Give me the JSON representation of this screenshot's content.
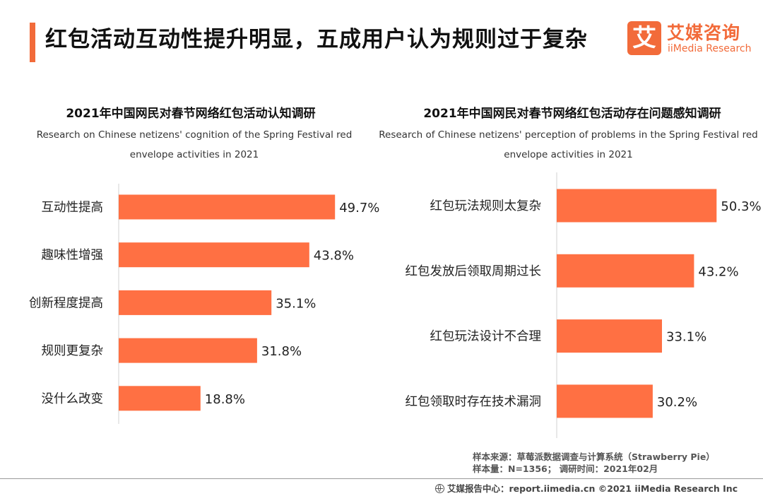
{
  "header": {
    "title": "红包活动互动性提升明显，五成用户认为规则过于复杂",
    "accent_color": "#f26b3a"
  },
  "logo": {
    "mark": "艾",
    "cn": "艾媒咨询",
    "en": "iiMedia Research"
  },
  "chart_data": [
    {
      "type": "bar",
      "orientation": "horizontal",
      "title": "2021年中国网民对春节网络红包活动认知调研",
      "subtitle": "Research on Chinese netizens' cognition of the Spring Festival red envelope activities in 2021",
      "categories": [
        "互动性提高",
        "趣味性增强",
        "创新程度提高",
        "规则更复杂",
        "没什么改变"
      ],
      "values": [
        49.7,
        43.8,
        35.1,
        31.8,
        18.8
      ],
      "value_labels": [
        "49.7%",
        "43.8%",
        "35.1%",
        "31.8%",
        "18.8%"
      ],
      "value_unit": "%",
      "xlim": [
        0,
        60
      ],
      "bar_color": "#ff7043",
      "grid": false,
      "legend": "none"
    },
    {
      "type": "bar",
      "orientation": "horizontal",
      "title": "2021年中国网民对春节网络红包活动存在问题感知调研",
      "subtitle": "Research of Chinese netizens' perception of problems in the Spring Festival red envelope activities in 2021",
      "categories": [
        "红包玩法规则太复杂",
        "红包发放后领取周期过长",
        "红包玩法设计不合理",
        "红包领取时存在技术漏洞"
      ],
      "values": [
        50.3,
        43.2,
        33.1,
        30.2
      ],
      "value_labels": [
        "50.3%",
        "43.2%",
        "33.1%",
        "30.2%"
      ],
      "value_unit": "%",
      "xlim": [
        0,
        60
      ],
      "bar_color": "#ff7043",
      "grid": false,
      "legend": "none"
    }
  ],
  "source": {
    "line1": "样本来源：草莓派数据调查与计算系统（Strawberry Pie）",
    "line2": "样本量：N=1356； 调研时间：2021年02月"
  },
  "footer": {
    "text": "艾媒报告中心：report.iimedia.cn  ©2021  iiMedia Research  Inc",
    "icon": "globe-icon"
  }
}
